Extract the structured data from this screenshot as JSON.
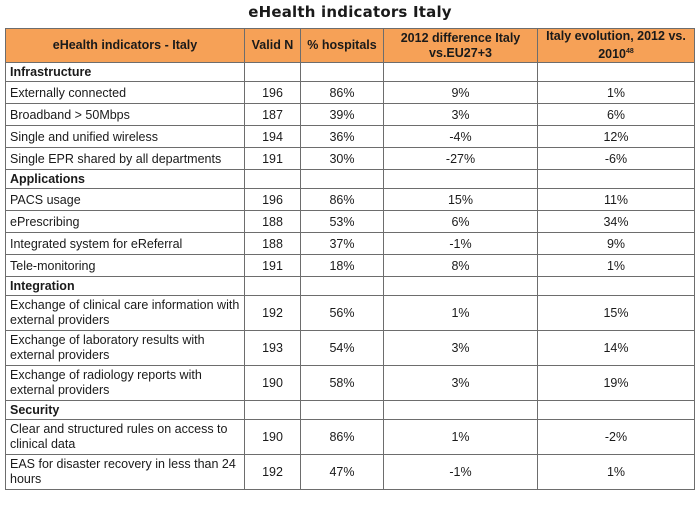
{
  "title": "eHealth indicators Italy",
  "headers": {
    "indicator": "eHealth indicators - Italy",
    "valid_n": "Valid N",
    "pct_hospitals": "% hospitals",
    "diff": "2012 difference Italy vs.EU27+3",
    "evolution": "Italy evolution, 2012 vs. 2010",
    "evolution_footnote": "48"
  },
  "sections": [
    {
      "name": "Infrastructure",
      "rows": [
        {
          "label": "Externally connected",
          "n": "196",
          "pct": "86%",
          "diff": "9%",
          "evo": "1%"
        },
        {
          "label": "Broadband > 50Mbps",
          "n": "187",
          "pct": "39%",
          "diff": "3%",
          "evo": "6%"
        },
        {
          "label": "Single and unified wireless",
          "n": "194",
          "pct": "36%",
          "diff": "-4%",
          "evo": "12%"
        },
        {
          "label": "Single EPR shared by all departments",
          "n": "191",
          "pct": "30%",
          "diff": "-27%",
          "evo": "-6%"
        }
      ]
    },
    {
      "name": "Applications",
      "rows": [
        {
          "label": "PACS usage",
          "n": "196",
          "pct": "86%",
          "diff": "15%",
          "evo": "11%"
        },
        {
          "label": "ePrescribing",
          "n": "188",
          "pct": "53%",
          "diff": "6%",
          "evo": "34%"
        },
        {
          "label": "Integrated system for eReferral",
          "n": "188",
          "pct": "37%",
          "diff": "-1%",
          "evo": "9%"
        },
        {
          "label": "Tele-monitoring",
          "n": "191",
          "pct": "18%",
          "diff": "8%",
          "evo": "1%"
        }
      ]
    },
    {
      "name": "Integration",
      "rows": [
        {
          "label": "Exchange of clinical care information with external providers",
          "n": "192",
          "pct": "56%",
          "diff": "1%",
          "evo": "15%"
        },
        {
          "label": "Exchange of laboratory results with external providers",
          "n": "193",
          "pct": "54%",
          "diff": "3%",
          "evo": "14%"
        },
        {
          "label": "Exchange of radiology reports with external providers",
          "n": "190",
          "pct": "58%",
          "diff": "3%",
          "evo": "19%"
        }
      ]
    },
    {
      "name": "Security",
      "rows": [
        {
          "label": "Clear and structured rules on access to clinical data",
          "n": "190",
          "pct": "86%",
          "diff": "1%",
          "evo": "-2%"
        },
        {
          "label": "EAS for disaster recovery in less than 24 hours",
          "n": "192",
          "pct": "47%",
          "diff": "-1%",
          "evo": "1%"
        }
      ]
    }
  ]
}
